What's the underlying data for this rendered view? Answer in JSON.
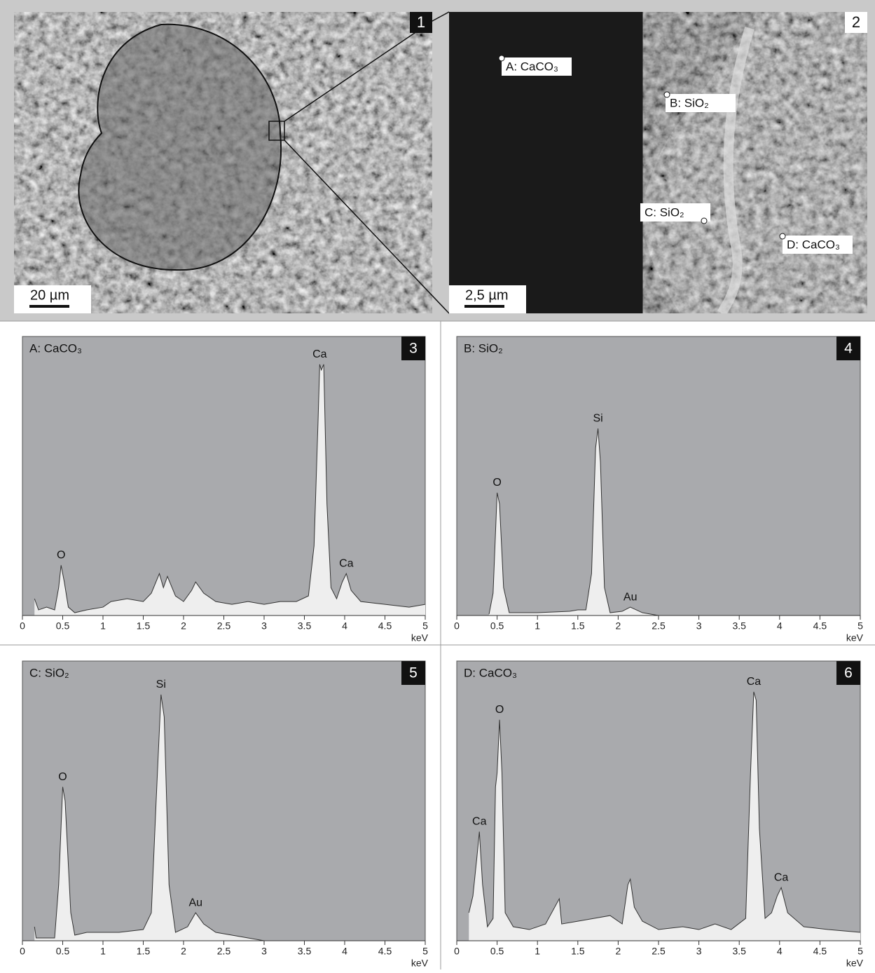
{
  "images": [
    {
      "panel": "1",
      "scale_bar": "20 µm"
    },
    {
      "panel": "2",
      "scale_bar": "2,5 µm",
      "labels": [
        "A: CaCO₃",
        "B: SiO₂",
        "C: SiO₂",
        "D: CaCO₃"
      ]
    }
  ],
  "chart_data": [
    {
      "type": "area",
      "title": "A: CaCO₃",
      "panel": "3",
      "x_label": "keV",
      "xlim": [
        0,
        5
      ],
      "ylim": [
        0,
        100
      ],
      "xticks": [
        0,
        0.5,
        1,
        1.5,
        2,
        2.5,
        3,
        3.5,
        4,
        4.5,
        5
      ],
      "x": [
        0.15,
        0.2,
        0.3,
        0.4,
        0.45,
        0.48,
        0.52,
        0.57,
        0.65,
        0.8,
        1.0,
        1.1,
        1.3,
        1.5,
        1.6,
        1.7,
        1.75,
        1.8,
        1.9,
        2.0,
        2.1,
        2.15,
        2.25,
        2.4,
        2.6,
        2.8,
        3.0,
        3.2,
        3.4,
        3.55,
        3.62,
        3.67,
        3.69,
        3.71,
        3.74,
        3.78,
        3.83,
        3.9,
        3.97,
        4.02,
        4.08,
        4.2,
        4.5,
        4.8,
        5.0
      ],
      "values": [
        6,
        2,
        3,
        2,
        10,
        18,
        12,
        3,
        1,
        2,
        3,
        5,
        6,
        5,
        8,
        15,
        10,
        14,
        7,
        5,
        9,
        12,
        8,
        5,
        4,
        5,
        4,
        5,
        5,
        7,
        25,
        70,
        90,
        88,
        90,
        40,
        10,
        6,
        12,
        15,
        9,
        5,
        4,
        3,
        4
      ],
      "annotations": [
        {
          "text": "O",
          "x": 0.48
        },
        {
          "text": "Ca",
          "x": 3.69
        },
        {
          "text": "Ca",
          "x": 4.02
        }
      ]
    },
    {
      "type": "area",
      "title": "B: SiO₂",
      "panel": "4",
      "x_label": "keV",
      "xlim": [
        0,
        5
      ],
      "ylim": [
        0,
        100
      ],
      "xticks": [
        0,
        0.5,
        1,
        1.5,
        2,
        2.5,
        3,
        3.5,
        4,
        4.5,
        5
      ],
      "x": [
        0.4,
        0.45,
        0.5,
        0.53,
        0.58,
        0.65,
        1.0,
        1.4,
        1.5,
        1.6,
        1.67,
        1.72,
        1.75,
        1.78,
        1.83,
        1.9,
        2.05,
        2.15,
        2.3,
        2.4,
        2.5,
        5.0
      ],
      "values": [
        0.5,
        8,
        44,
        40,
        10,
        1,
        1,
        1.5,
        2,
        2,
        15,
        60,
        67,
        55,
        10,
        1,
        1.5,
        3,
        1,
        0.5,
        0,
        0
      ],
      "annotations": [
        {
          "text": "O",
          "x": 0.5
        },
        {
          "text": "Si",
          "x": 1.75
        },
        {
          "text": "Au",
          "x": 2.15
        }
      ]
    },
    {
      "type": "area",
      "title": "C: SiO₂",
      "panel": "5",
      "x_label": "keV",
      "xlim": [
        0,
        5
      ],
      "ylim": [
        0,
        100
      ],
      "xticks": [
        0,
        0.5,
        1,
        1.5,
        2,
        2.5,
        3,
        3.5,
        4,
        4.5,
        5
      ],
      "x": [
        0.15,
        0.17,
        0.4,
        0.45,
        0.5,
        0.53,
        0.6,
        0.65,
        0.8,
        1.0,
        1.2,
        1.5,
        1.6,
        1.66,
        1.72,
        1.76,
        1.82,
        1.9,
        2.05,
        2.15,
        2.25,
        2.4,
        2.6,
        2.8,
        3.0,
        5.0
      ],
      "values": [
        5,
        1,
        1,
        20,
        55,
        50,
        10,
        2,
        3,
        3,
        3,
        4,
        10,
        50,
        88,
        80,
        20,
        3,
        5,
        10,
        6,
        3,
        2,
        1,
        0,
        0
      ],
      "annotations": [
        {
          "text": "O",
          "x": 0.5
        },
        {
          "text": "Si",
          "x": 1.72
        },
        {
          "text": "Au",
          "x": 2.15
        }
      ]
    },
    {
      "type": "area",
      "title": "D: CaCO₃",
      "panel": "6",
      "x_label": "keV",
      "xlim": [
        0,
        5
      ],
      "ylim": [
        0,
        100
      ],
      "xticks": [
        0,
        0.5,
        1,
        1.5,
        2,
        2.5,
        3,
        3.5,
        4,
        4.5,
        5
      ],
      "x": [
        0.15,
        0.2,
        0.25,
        0.28,
        0.32,
        0.38,
        0.45,
        0.48,
        0.5,
        0.53,
        0.56,
        0.6,
        0.7,
        0.9,
        1.1,
        1.27,
        1.3,
        1.5,
        1.7,
        1.9,
        2.05,
        2.12,
        2.15,
        2.2,
        2.3,
        2.5,
        2.8,
        3.0,
        3.2,
        3.4,
        3.58,
        3.64,
        3.68,
        3.71,
        3.75,
        3.82,
        3.9,
        3.97,
        4.02,
        4.1,
        4.3,
        4.6,
        5.0
      ],
      "values": [
        10,
        16,
        30,
        39,
        20,
        5,
        8,
        55,
        60,
        79,
        60,
        10,
        5,
        4,
        6,
        15,
        6,
        7,
        8,
        9,
        6,
        20,
        22,
        12,
        7,
        4,
        5,
        4,
        6,
        4,
        8,
        60,
        89,
        86,
        40,
        8,
        10,
        16,
        19,
        10,
        5,
        4,
        3
      ],
      "annotations": [
        {
          "text": "Ca",
          "x": 0.28
        },
        {
          "text": "O",
          "x": 0.53
        },
        {
          "text": "Ca",
          "x": 3.68
        },
        {
          "text": "Ca",
          "x": 4.02
        }
      ]
    }
  ]
}
